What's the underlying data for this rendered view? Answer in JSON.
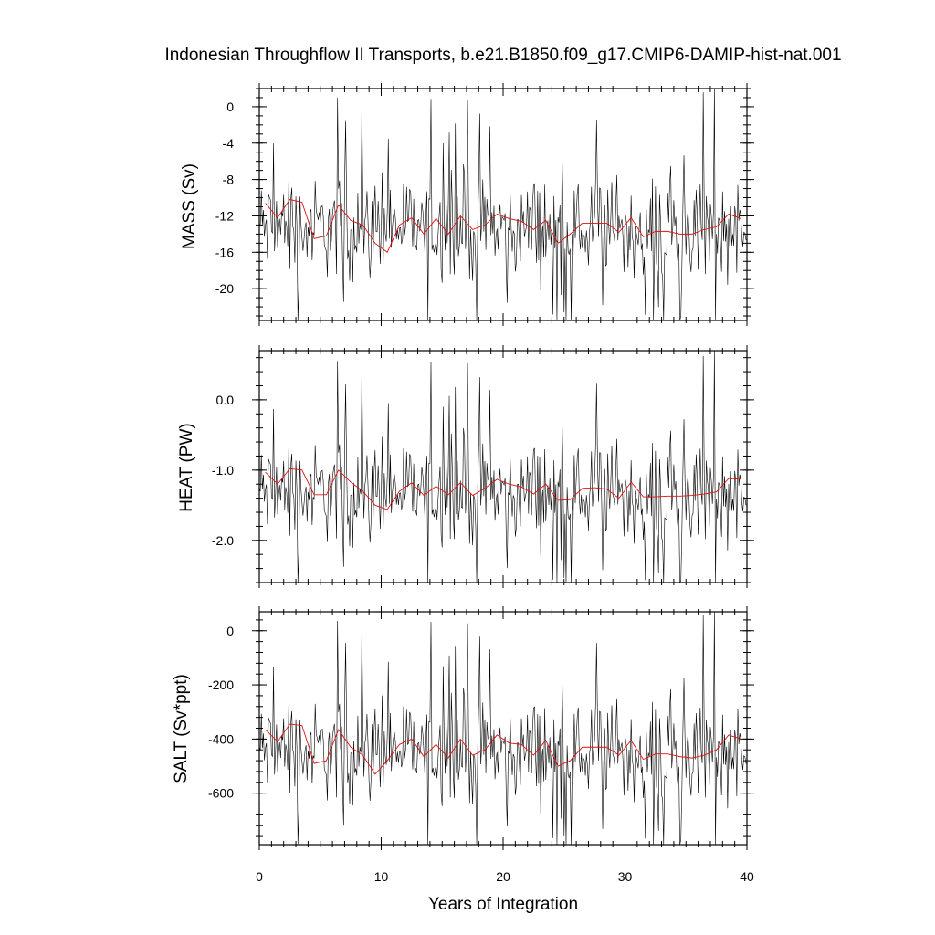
{
  "chart_data": {
    "type": "line",
    "title": "Indonesian Throughflow II Transports, b.e21.B1850.f09_g17.CMIP6-DAMIP-hist-nat.001",
    "xlabel": "Years of Integration",
    "xlim": [
      0,
      40
    ],
    "x_ticks": [
      0,
      10,
      20,
      30,
      40
    ],
    "x_tick_labels": [
      "0",
      "10",
      "20",
      "30",
      "40"
    ],
    "grid": false,
    "legend": "none",
    "colors": {
      "monthly": "#000000",
      "annual_mean": "#e01010"
    },
    "raw_points_per_year": 12,
    "panels": [
      {
        "ylabel": "MASS (Sv)",
        "ylim": [
          -23.5,
          2
        ],
        "y_ticks": [
          0,
          -4,
          -8,
          -12,
          -16,
          -20
        ],
        "y_tick_labels": [
          "0",
          "-4",
          "-8",
          "-12",
          "-16",
          "-20"
        ],
        "y_minor_step": 1,
        "base": [
          -13.3,
          -13.0,
          -12.9,
          -13.5,
          -13.4,
          -13.3,
          -13.6,
          -13.2,
          -13.5,
          -13.4,
          -13.2,
          -13.1,
          -13.2,
          -13.4,
          -13.5,
          -13.6,
          -13.6,
          -13.7,
          -13.5,
          -13.3,
          -13.4,
          -13.4,
          -13.2,
          -13.3,
          -13.5,
          -13.3,
          -13.4,
          -13.3,
          -13.6,
          -13.7,
          -13.3,
          -13.4,
          -13.4,
          -13.2,
          -13.5,
          -13.3,
          -13.4,
          -13.4,
          -13.2,
          -13.3,
          -13.4
        ],
        "amplitude": 4.6,
        "annual_mean": [
          -10.6,
          -12.2,
          -10.2,
          -10.5,
          -14.5,
          -14.2,
          -10.8,
          -12.5,
          -13.0,
          -15.0,
          -16.0,
          -13.0,
          -12.2,
          -14.0,
          -12.3,
          -14.0,
          -12.0,
          -13.5,
          -13.0,
          -11.8,
          -12.3,
          -12.6,
          -13.5,
          -12.5,
          -15.0,
          -14.0,
          -12.8,
          -12.8,
          -12.8,
          -13.8,
          -12.2,
          -14.3,
          -13.7,
          -13.7,
          -14.0,
          -14.0,
          -13.5,
          -13.2,
          -11.8,
          -12.3
        ]
      },
      {
        "ylabel": "HEAT (PW)",
        "ylim": [
          -2.6,
          0.7
        ],
        "y_ticks": [
          0.0,
          -1.0,
          -2.0
        ],
        "y_tick_labels": [
          "0.0",
          "-1.0",
          "-2.0"
        ],
        "y_minor_step": 0.2,
        "base": [
          -1.32,
          -1.3,
          -1.29,
          -1.34,
          -1.33,
          -1.32,
          -1.35,
          -1.31,
          -1.34,
          -1.33,
          -1.31,
          -1.3,
          -1.31,
          -1.33,
          -1.34,
          -1.35,
          -1.35,
          -1.36,
          -1.34,
          -1.32,
          -1.33,
          -1.33,
          -1.31,
          -1.32,
          -1.34,
          -1.32,
          -1.33,
          -1.32,
          -1.35,
          -1.36,
          -1.32,
          -1.33,
          -1.33,
          -1.31,
          -1.34,
          -1.32,
          -1.33,
          -1.33,
          -1.31,
          -1.32,
          -1.33
        ],
        "amplitude": 0.6,
        "annual_mean": [
          -1.03,
          -1.2,
          -0.98,
          -1.0,
          -1.35,
          -1.35,
          -1.0,
          -1.17,
          -1.3,
          -1.5,
          -1.56,
          -1.3,
          -1.18,
          -1.36,
          -1.23,
          -1.35,
          -1.18,
          -1.36,
          -1.26,
          -1.13,
          -1.2,
          -1.24,
          -1.34,
          -1.2,
          -1.43,
          -1.42,
          -1.26,
          -1.25,
          -1.27,
          -1.4,
          -1.17,
          -1.38,
          -1.38,
          -1.37,
          -1.37,
          -1.36,
          -1.34,
          -1.31,
          -1.12,
          -1.13
        ]
      },
      {
        "ylabel": "SALT (Sv*ppt)",
        "ylim": [
          -790,
          70
        ],
        "y_ticks": [
          0,
          -200,
          -400,
          -600
        ],
        "y_tick_labels": [
          "0",
          "-200",
          "-400",
          "-600"
        ],
        "y_minor_step": 40,
        "base": [
          -445,
          -435,
          -432,
          -450,
          -447,
          -445,
          -455,
          -440,
          -450,
          -447,
          -441,
          -437,
          -440,
          -447,
          -451,
          -454,
          -455,
          -458,
          -451,
          -445,
          -448,
          -448,
          -441,
          -445,
          -451,
          -445,
          -448,
          -445,
          -455,
          -458,
          -445,
          -448,
          -448,
          -441,
          -451,
          -445,
          -448,
          -448,
          -441,
          -445,
          -448
        ],
        "amplitude": 155,
        "annual_mean": [
          -365,
          -410,
          -345,
          -350,
          -490,
          -480,
          -365,
          -430,
          -460,
          -530,
          -480,
          -420,
          -400,
          -465,
          -420,
          -470,
          -400,
          -460,
          -440,
          -385,
          -415,
          -420,
          -460,
          -405,
          -500,
          -480,
          -430,
          -430,
          -430,
          -460,
          -405,
          -475,
          -455,
          -455,
          -465,
          -470,
          -460,
          -440,
          -385,
          -400
        ]
      }
    ]
  }
}
